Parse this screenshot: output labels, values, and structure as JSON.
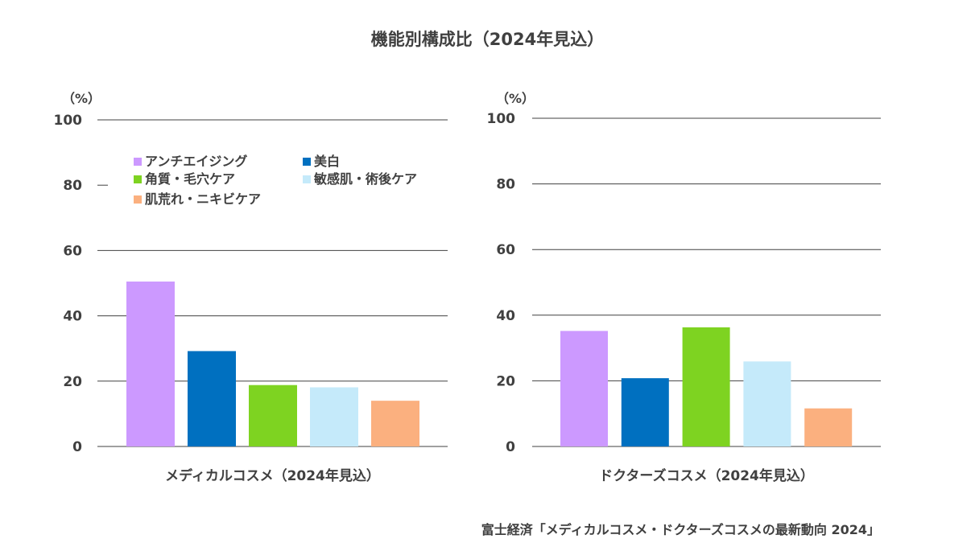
{
  "title": "機能別構成比（2024年見込）",
  "source": "富士経済「メディカルコスメ・ドクターズコスメの最新動向 2024」",
  "unit_label": "（%）",
  "legend": [
    {
      "label": "アンチエイジング",
      "color": "#cc99ff"
    },
    {
      "label": "美白",
      "color": "#0070c0"
    },
    {
      "label": "角質・毛穴ケア",
      "color": "#7ed321"
    },
    {
      "label": "敏感肌・術後ケア",
      "color": "#c5eafa"
    },
    {
      "label": "肌荒れ・ニキビケア",
      "color": "#fbb07f"
    }
  ],
  "chart_data": [
    {
      "type": "bar",
      "xlabel": "メディカルコスメ（2024年見込）",
      "ylabel": "（%）",
      "ylim": [
        0,
        100
      ],
      "yticks": [
        0,
        20,
        40,
        60,
        80,
        100
      ],
      "grid": true,
      "legend_position": "top-left",
      "categories": [
        "アンチエイジング",
        "美白",
        "角質・毛穴ケア",
        "敏感肌・術後ケア",
        "肌荒れ・ニキビケア"
      ],
      "values": [
        50.5,
        29.2,
        18.8,
        18.1,
        14.0
      ]
    },
    {
      "type": "bar",
      "xlabel": "ドクターズコスメ（2024年見込）",
      "ylabel": "（%）",
      "ylim": [
        0,
        100
      ],
      "yticks": [
        0,
        20,
        40,
        60,
        80,
        100
      ],
      "grid": true,
      "categories": [
        "アンチエイジング",
        "美白",
        "角質・毛穴ケア",
        "敏感肌・術後ケア",
        "肌荒れ・ニキビケア"
      ],
      "values": [
        35.2,
        20.8,
        36.3,
        25.9,
        11.6
      ]
    }
  ]
}
